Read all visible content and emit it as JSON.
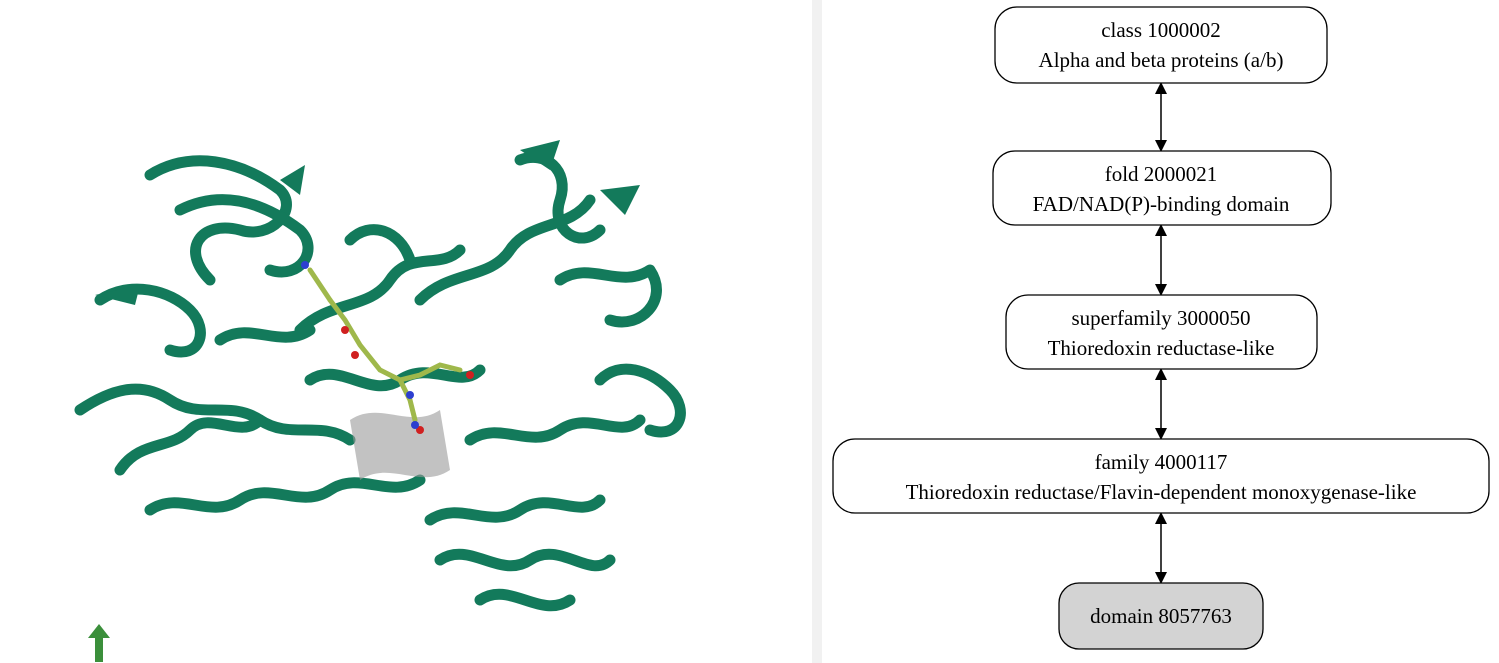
{
  "viewer": {
    "protein_color": "#137a5b",
    "ligand_color": "#9fb84b",
    "arrow_color": "#3b8f3b",
    "orientation_icon": "arrow-up-icon"
  },
  "hierarchy": {
    "node_fill": "#ffffff",
    "selected_fill": "#d3d3d3",
    "edge_type": "bidirectional-arrow",
    "nodes": [
      {
        "line1": "class 1000002",
        "line2": "Alpha and beta proteins (a/b)"
      },
      {
        "line1": "fold 2000021",
        "line2": "FAD/NAD(P)-binding domain"
      },
      {
        "line1": "superfamily 3000050",
        "line2": "Thioredoxin reductase-like"
      },
      {
        "line1": "family 4000117",
        "line2": "Thioredoxin reductase/Flavin-dependent monoxygenase-like"
      },
      {
        "line1": "domain 8057763",
        "selected": true
      }
    ]
  }
}
